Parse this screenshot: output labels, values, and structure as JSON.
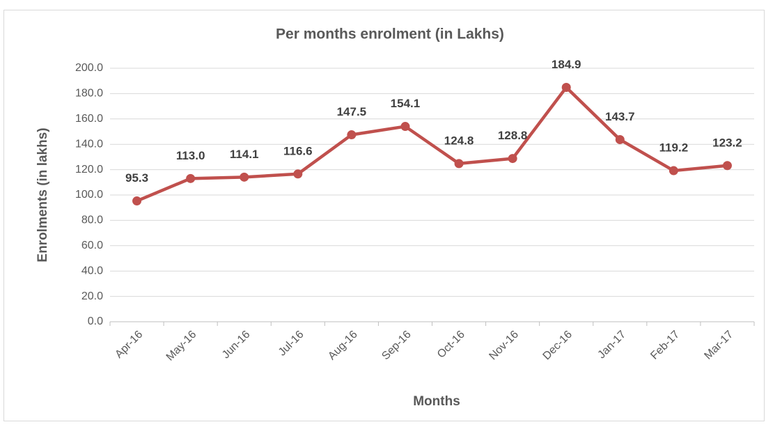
{
  "chart_data": {
    "type": "line",
    "title": "Per months enrolment  (in Lakhs)",
    "x_label": "Months",
    "y_label": "Enrolments (in lakhs)",
    "categories": [
      "Apr-16",
      "May-16",
      "Jun-16",
      "Jul-16",
      "Aug-16",
      "Sep-16",
      "Oct-16",
      "Nov-16",
      "Dec-16",
      "Jan-17",
      "Feb-17",
      "Mar-17"
    ],
    "values": [
      95.3,
      113.0,
      114.1,
      116.6,
      147.5,
      154.1,
      124.8,
      128.8,
      184.9,
      143.7,
      119.2,
      123.2
    ],
    "value_labels": [
      "95.3",
      "113.0",
      "114.1",
      "116.6",
      "147.5",
      "154.1",
      "124.8",
      "128.8",
      "184.9",
      "143.7",
      "119.2",
      "123.2"
    ],
    "color": "#c0504d",
    "ylim": [
      0,
      200
    ],
    "yticks": [
      {
        "value": 0,
        "label": "0.0"
      },
      {
        "value": 20,
        "label": "20.0"
      },
      {
        "value": 40,
        "label": "40.0"
      },
      {
        "value": 60,
        "label": "60.0"
      },
      {
        "value": 80,
        "label": "80.0"
      },
      {
        "value": 100,
        "label": "100.0"
      },
      {
        "value": 120,
        "label": "120.0"
      },
      {
        "value": 140,
        "label": "140.0"
      },
      {
        "value": 160,
        "label": "160.0"
      },
      {
        "value": 180,
        "label": "180.0"
      },
      {
        "value": 200,
        "label": "200.0"
      }
    ],
    "grid": true
  }
}
